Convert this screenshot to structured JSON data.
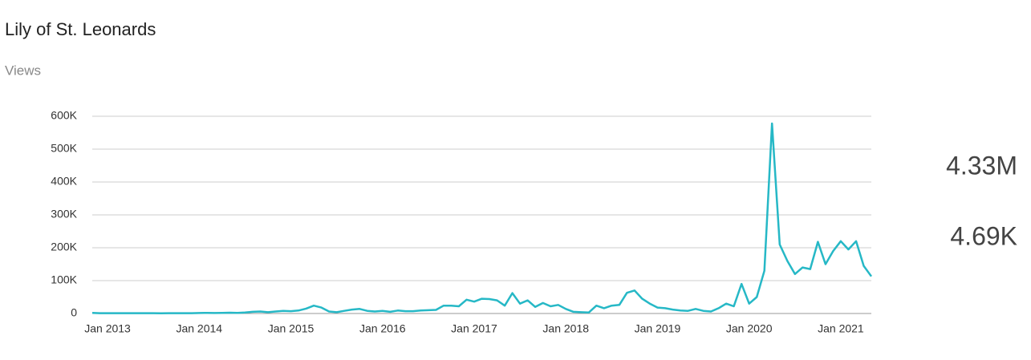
{
  "chart_data": {
    "type": "line",
    "title": "Lily of St. Leonards",
    "subtitle": "Views",
    "categories": [
      null,
      null,
      "Jan 2013",
      null,
      null,
      null,
      null,
      null,
      null,
      null,
      null,
      null,
      null,
      null,
      "Jan 2014",
      null,
      null,
      null,
      null,
      null,
      null,
      null,
      null,
      null,
      null,
      null,
      "Jan 2015",
      null,
      null,
      null,
      null,
      null,
      null,
      null,
      null,
      null,
      null,
      null,
      "Jan 2016",
      null,
      null,
      null,
      null,
      null,
      null,
      null,
      null,
      null,
      null,
      null,
      "Jan 2017",
      null,
      null,
      null,
      null,
      null,
      null,
      null,
      null,
      null,
      null,
      null,
      "Jan 2018",
      null,
      null,
      null,
      null,
      null,
      null,
      null,
      null,
      null,
      null,
      null,
      "Jan 2019",
      null,
      null,
      null,
      null,
      null,
      null,
      null,
      null,
      null,
      null,
      null,
      "Jan 2020",
      null,
      null,
      null,
      null,
      null,
      null,
      null,
      null,
      null,
      null,
      null,
      "Jan 2021",
      null,
      null,
      null,
      null
    ],
    "series": [
      {
        "name": "Views",
        "color": "#26b8c6",
        "values": [
          2000,
          1000,
          1000,
          1000,
          1000,
          1000,
          1000,
          1000,
          1000,
          500,
          1000,
          1000,
          1000,
          1000,
          1500,
          2000,
          1500,
          2000,
          2500,
          2000,
          3000,
          5000,
          6000,
          4000,
          6000,
          8000,
          7000,
          9000,
          15000,
          24000,
          18000,
          6000,
          4000,
          8000,
          12000,
          14000,
          8000,
          6000,
          8000,
          5000,
          9000,
          7000,
          7000,
          9000,
          10000,
          11000,
          24000,
          24000,
          22000,
          42000,
          36000,
          45000,
          44000,
          40000,
          24000,
          62000,
          30000,
          40000,
          20000,
          32000,
          22000,
          26000,
          14000,
          5000,
          4000,
          3000,
          24000,
          16000,
          24000,
          26000,
          63000,
          70000,
          45000,
          30000,
          18000,
          16000,
          12000,
          9000,
          8000,
          14000,
          8000,
          6000,
          16000,
          30000,
          22000,
          90000,
          30000,
          50000,
          130000,
          578000,
          210000,
          160000,
          120000,
          140000,
          135000,
          218000,
          150000,
          190000,
          220000,
          195000,
          220000,
          145000,
          113000
        ]
      }
    ],
    "ylim": [
      0,
      600000
    ],
    "yticks": [
      0,
      {
        "value": 100000,
        "label": "100K"
      },
      {
        "value": 200000,
        "label": "200K"
      },
      {
        "value": 300000,
        "label": "300K"
      },
      {
        "value": 400000,
        "label": "400K"
      },
      {
        "value": 500000,
        "label": "500K"
      },
      {
        "value": 600000,
        "label": "600K"
      }
    ],
    "grid": true,
    "stats": [
      "4.33M",
      "4.69K"
    ]
  }
}
